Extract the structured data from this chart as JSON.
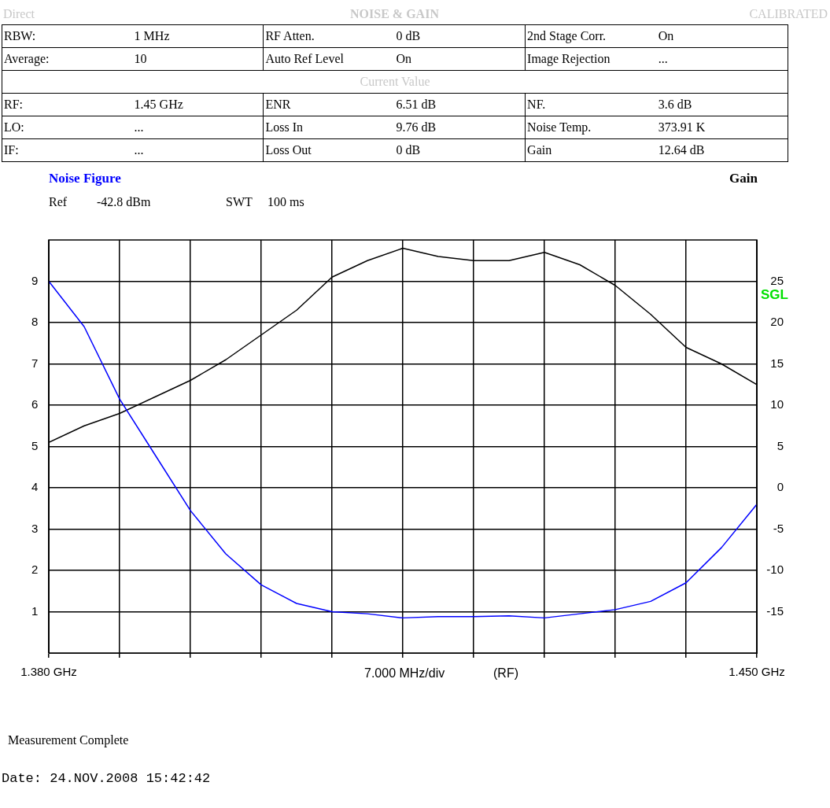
{
  "chart_data": {
    "type": "line",
    "title": "NOISE & GAIN",
    "ylabel": "Noise Figure",
    "xlabel": "7.000 MHz/div",
    "y2label": "Gain",
    "x": [
      1.38,
      1.3835,
      1.387,
      1.3905,
      1.394,
      1.3975,
      1.401,
      1.4045,
      1.408,
      1.4115,
      1.415,
      1.4185,
      1.422,
      1.4255,
      1.429,
      1.4325,
      1.436,
      1.4395,
      1.443,
      1.4465,
      1.45
    ],
    "series": [
      {
        "color": "#0000ff",
        "axis": "y",
        "values": [
          9.0,
          7.9,
          6.15,
          4.8,
          3.45,
          2.4,
          1.65,
          1.2,
          1.0,
          0.95,
          0.85,
          0.88,
          0.88,
          0.9,
          0.85,
          0.95,
          1.05,
          1.25,
          1.7,
          2.55,
          3.6
        ]
      },
      {
        "color": "#000000",
        "axis": "y2",
        "values": [
          5.5,
          7.5,
          9,
          11,
          13,
          15.5,
          18.5,
          21.5,
          25.5,
          27.5,
          29,
          28,
          27.5,
          27.5,
          28.5,
          27,
          24.5,
          21,
          17,
          15,
          12.5
        ]
      }
    ],
    "xlim": [
      1.38,
      1.45
    ],
    "xticks": [
      {
        "value": 1.38,
        "label": "1.380 GHz"
      },
      {
        "value": 1.387,
        "label": null
      },
      {
        "value": 1.394,
        "label": null
      },
      {
        "value": 1.401,
        "label": null
      },
      {
        "value": 1.408,
        "label": null
      },
      {
        "value": 1.415,
        "label": null
      },
      {
        "value": 1.422,
        "label": null
      },
      {
        "value": 1.429,
        "label": null
      },
      {
        "value": 1.436,
        "label": null
      },
      {
        "value": 1.443,
        "label": null
      },
      {
        "value": 1.45,
        "label": "1.450 GHz"
      }
    ],
    "ylim": [
      0,
      10
    ],
    "yticks": [
      1,
      2,
      3,
      4,
      5,
      6,
      7,
      8,
      9
    ],
    "y2lim": [
      -20,
      30
    ],
    "y2ticks": [
      -15,
      -10,
      -5,
      0,
      5,
      10,
      15,
      20,
      25
    ],
    "grid": true,
    "legend": false,
    "marker": "none",
    "line_style": "solid",
    "annotations": [
      "Direct",
      "CALIBRATED",
      "RBW:",
      "1 MHz",
      "RF Atten.",
      "0 dB",
      "2nd Stage Corr.",
      "On",
      "Average:",
      "10",
      "Auto Ref Level",
      "On",
      "Image Rejection",
      "...",
      "Current Value",
      "RF:",
      "1.45 GHz",
      "ENR",
      "6.51 dB",
      "NF.",
      "3.6 dB",
      "LO:",
      "...",
      "Loss In",
      "9.76 dB",
      "Noise Temp.",
      "373.91 K",
      "IF:",
      "...",
      "Loss Out",
      "0 dB",
      "Gain",
      "12.64 dB",
      "Ref",
      "-42.8 dBm",
      "SWT",
      "100 ms",
      "SGL",
      "(RF)",
      "Measurement Complete",
      "Date: 24.NOV.2008  15:42:42"
    ]
  }
}
